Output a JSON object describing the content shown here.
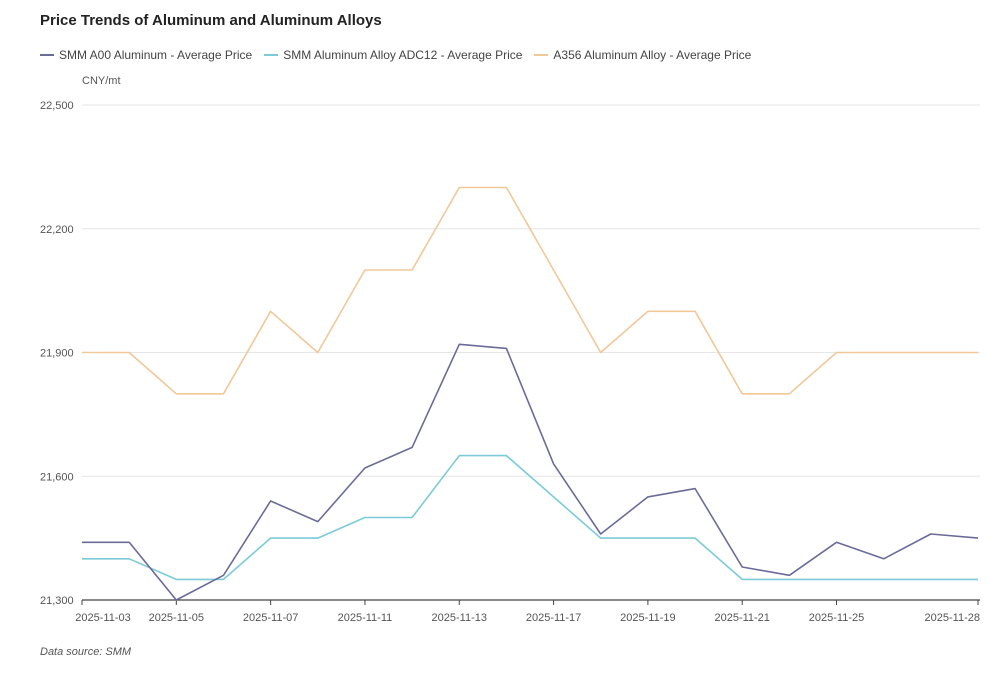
{
  "chart_data": {
    "type": "line",
    "title": "Price Trends of Aluminum and Aluminum Alloys",
    "ylabel": "CNY/mt",
    "source": "Data source:  SMM",
    "ylim": [
      21300,
      22500
    ],
    "yticks": [
      21300,
      21600,
      21900,
      22200,
      22500
    ],
    "ytick_labels": [
      "21,300",
      "21,600",
      "21,900",
      "22,200",
      "22,500"
    ],
    "xtick_labels": [
      "2025-11-03",
      "2025-11-05",
      "2025-11-07",
      "2025-11-11",
      "2025-11-13",
      "2025-11-17",
      "2025-11-19",
      "2025-11-21",
      "2025-11-25",
      "2025-11-28"
    ],
    "xtick_indices": [
      0,
      2,
      4,
      6,
      8,
      10,
      12,
      14,
      16,
      19
    ],
    "x": [
      "2025-11-03",
      "2025-11-04",
      "2025-11-05",
      "2025-11-06",
      "2025-11-07",
      "2025-11-10",
      "2025-11-11",
      "2025-11-12",
      "2025-11-13",
      "2025-11-14",
      "2025-11-17",
      "2025-11-18",
      "2025-11-19",
      "2025-11-20",
      "2025-11-21",
      "2025-11-24",
      "2025-11-25",
      "2025-11-26",
      "2025-11-27",
      "2025-11-28"
    ],
    "series": [
      {
        "name": "SMM A00 Aluminum - Average Price",
        "color": "#6b6b99",
        "values": [
          21440,
          21440,
          21300,
          21360,
          21540,
          21490,
          21620,
          21670,
          21920,
          21910,
          21630,
          21460,
          21550,
          21570,
          21380,
          21360,
          21440,
          21400,
          21460,
          21450
        ]
      },
      {
        "name": "SMM Aluminum Alloy ADC12 - Average Price",
        "color": "#7ccbd8",
        "values": [
          21400,
          21400,
          21350,
          21350,
          21450,
          21450,
          21500,
          21500,
          21650,
          21650,
          21550,
          21450,
          21450,
          21450,
          21350,
          21350,
          21350,
          21350,
          21350,
          21350
        ]
      },
      {
        "name": "A356 Aluminum Alloy - Average Price",
        "color": "#f0c89a",
        "values": [
          21900,
          21900,
          21800,
          21800,
          22000,
          21900,
          22100,
          22100,
          22300,
          22300,
          22100,
          21900,
          22000,
          22000,
          21800,
          21800,
          21900,
          21900,
          21900,
          21900
        ]
      }
    ]
  }
}
